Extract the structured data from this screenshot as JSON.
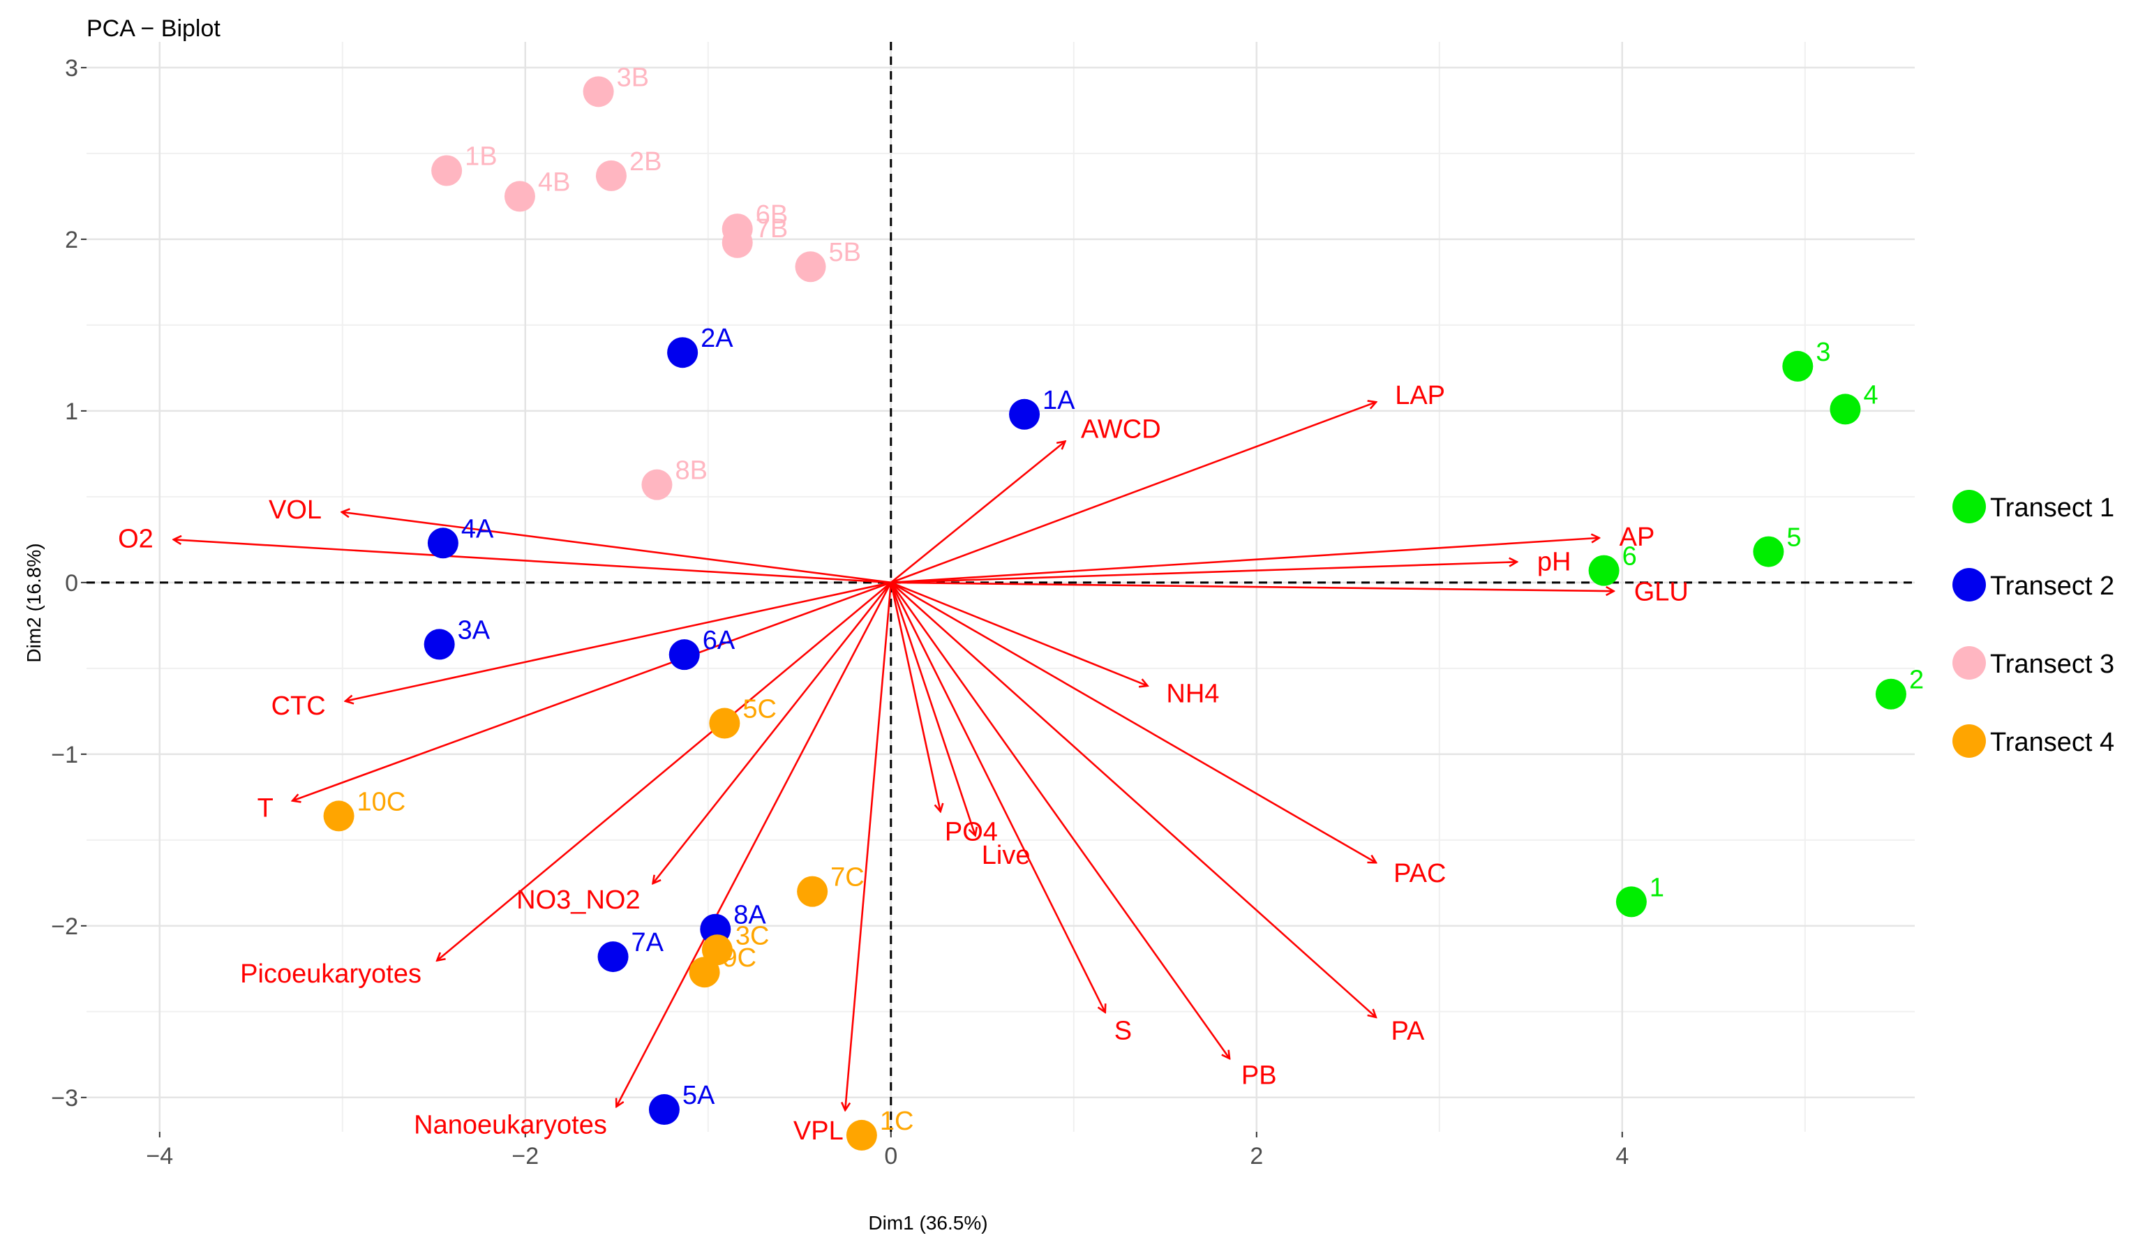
{
  "chart_data": {
    "type": "scatter",
    "title": "PCA − Biplot",
    "xlabel": "Dim1 (36.5%)",
    "ylabel": "Dim2 (16.8%)",
    "xlim": [
      -4.4,
      5.6
    ],
    "ylim": [
      -3.2,
      3.15
    ],
    "xticks": [
      -4,
      -2,
      0,
      2,
      4
    ],
    "yticks": [
      3,
      2,
      1,
      0,
      -1,
      -2,
      -3
    ],
    "xtick_labels": [
      "−4",
      "−2",
      "0",
      "2",
      "4"
    ],
    "ytick_labels": [
      "3",
      "2",
      "1",
      "0",
      "−1",
      "−2",
      "−3"
    ],
    "reference_lines": {
      "x": 0,
      "y": 0,
      "style": "dashed"
    },
    "arrow_color": "#ff0000",
    "variables": [
      {
        "name": "LAP",
        "x": 2.65,
        "y": 1.05
      },
      {
        "name": "AWCD",
        "x": 0.95,
        "y": 0.82
      },
      {
        "name": "AP",
        "x": 3.87,
        "y": 0.26
      },
      {
        "name": "pH",
        "x": 3.42,
        "y": 0.12
      },
      {
        "name": "GLU",
        "x": 3.95,
        "y": -0.05
      },
      {
        "name": "NH4",
        "x": 1.4,
        "y": -0.6
      },
      {
        "name": "PAC",
        "x": 2.65,
        "y": -1.63
      },
      {
        "name": "PA",
        "x": 2.65,
        "y": -2.53
      },
      {
        "name": "PB",
        "x": 1.85,
        "y": -2.77
      },
      {
        "name": "S",
        "x": 1.17,
        "y": -2.5
      },
      {
        "name": "Live",
        "x": 0.46,
        "y": -1.47
      },
      {
        "name": "PO4",
        "x": 0.27,
        "y": -1.33
      },
      {
        "name": "VPL",
        "x": -0.25,
        "y": -3.07
      },
      {
        "name": "Nanoeukaryotes",
        "x": -1.5,
        "y": -3.05
      },
      {
        "name": "NO3_NO2",
        "x": -1.3,
        "y": -1.75
      },
      {
        "name": "Picoeukaryotes",
        "x": -2.48,
        "y": -2.2
      },
      {
        "name": "T",
        "x": -3.27,
        "y": -1.27
      },
      {
        "name": "CTC",
        "x": -2.98,
        "y": -0.69
      },
      {
        "name": "VOL",
        "x": -3.0,
        "y": 0.41
      },
      {
        "name": "O2",
        "x": -3.92,
        "y": 0.25
      }
    ],
    "series": [
      {
        "name": "Transect 1",
        "color": "#00ee00",
        "points": [
          {
            "label": "1",
            "x": 4.05,
            "y": -1.86
          },
          {
            "label": "2",
            "x": 5.47,
            "y": -0.65
          },
          {
            "label": "3",
            "x": 4.96,
            "y": 1.26
          },
          {
            "label": "4",
            "x": 5.22,
            "y": 1.01
          },
          {
            "label": "5",
            "x": 4.8,
            "y": 0.18
          },
          {
            "label": "6",
            "x": 3.9,
            "y": 0.07
          }
        ]
      },
      {
        "name": "Transect 2",
        "color": "#0000ee",
        "points": [
          {
            "label": "1A",
            "x": 0.73,
            "y": 0.98
          },
          {
            "label": "2A",
            "x": -1.14,
            "y": 1.34
          },
          {
            "label": "3A",
            "x": -2.47,
            "y": -0.36
          },
          {
            "label": "4A",
            "x": -2.45,
            "y": 0.23
          },
          {
            "label": "5A",
            "x": -1.24,
            "y": -3.07
          },
          {
            "label": "6A",
            "x": -1.13,
            "y": -0.42
          },
          {
            "label": "7A",
            "x": -1.52,
            "y": -2.18
          },
          {
            "label": "8A",
            "x": -0.96,
            "y": -2.02
          }
        ]
      },
      {
        "name": "Transect 3",
        "color": "#ffb6c1",
        "points": [
          {
            "label": "1B",
            "x": -2.43,
            "y": 2.4
          },
          {
            "label": "2B",
            "x": -1.53,
            "y": 2.37
          },
          {
            "label": "3B",
            "x": -1.6,
            "y": 2.86
          },
          {
            "label": "4B",
            "x": -2.03,
            "y": 2.25
          },
          {
            "label": "5B",
            "x": -0.44,
            "y": 1.84
          },
          {
            "label": "6B",
            "x": -0.84,
            "y": 2.06
          },
          {
            "label": "7B",
            "x": -0.84,
            "y": 1.98
          },
          {
            "label": "8B",
            "x": -1.28,
            "y": 0.57
          }
        ]
      },
      {
        "name": "Transect 4",
        "color": "#ffa500",
        "points": [
          {
            "label": "10C",
            "x": -3.02,
            "y": -1.36
          },
          {
            "label": "5C",
            "x": -0.91,
            "y": -0.82
          },
          {
            "label": "7C",
            "x": -0.43,
            "y": -1.8
          },
          {
            "label": "3C",
            "x": -0.95,
            "y": -2.14
          },
          {
            "label": "9C",
            "x": -1.02,
            "y": -2.27
          },
          {
            "label": "1C",
            "x": -0.16,
            "y": -3.22
          }
        ]
      }
    ],
    "legend": [
      {
        "name": "Transect 1",
        "color": "#00ee00"
      },
      {
        "name": "Transect 2",
        "color": "#0000ee"
      },
      {
        "name": "Transect 3",
        "color": "#ffb6c1"
      },
      {
        "name": "Transect 4",
        "color": "#ffa500"
      }
    ],
    "legend_position": "right",
    "grid": true
  }
}
